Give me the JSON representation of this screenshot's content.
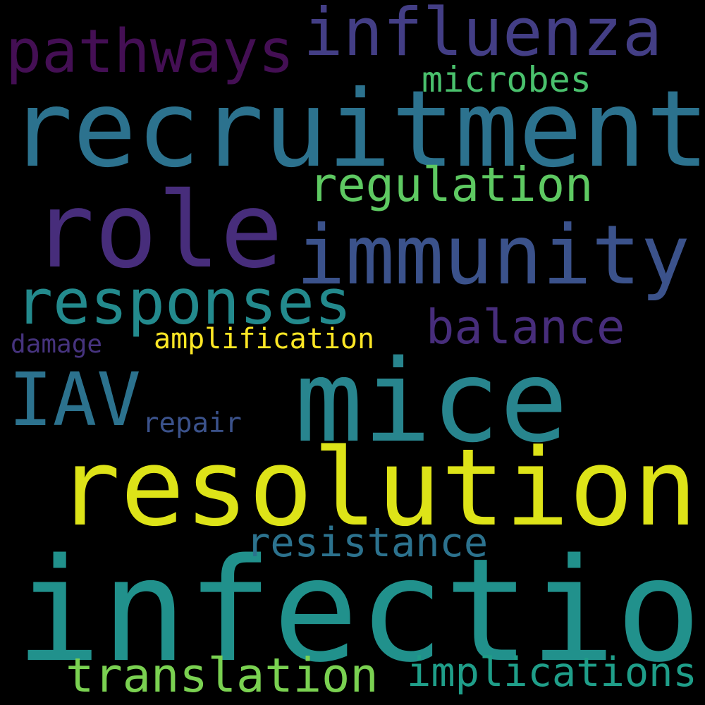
{
  "background": "#000000",
  "words": [
    {
      "id": "infection",
      "text": "infection",
      "color": "#21918c"
    },
    {
      "id": "recruitment",
      "text": "recruitment",
      "color": "#2c728e"
    },
    {
      "id": "mice",
      "text": "mice",
      "color": "#28858e"
    },
    {
      "id": "resolution",
      "text": "resolution",
      "color": "#dde318"
    },
    {
      "id": "role",
      "text": "role",
      "color": "#472d7b"
    },
    {
      "id": "immunity",
      "text": "immunity",
      "color": "#3b528b"
    },
    {
      "id": "influenza",
      "text": "influenza",
      "color": "#433e85"
    },
    {
      "id": "pathways",
      "text": "pathways",
      "color": "#440f54"
    },
    {
      "id": "responses",
      "text": "responses",
      "color": "#238a8d"
    },
    {
      "id": "IAV",
      "text": "IAV",
      "color": "#2c728e"
    },
    {
      "id": "translation",
      "text": "translation",
      "color": "#7ad151"
    },
    {
      "id": "regulation",
      "text": "regulation",
      "color": "#5ec962"
    },
    {
      "id": "balance",
      "text": "balance",
      "color": "#472d7b"
    },
    {
      "id": "implications",
      "text": "implications",
      "color": "#1f9e89"
    },
    {
      "id": "resistance",
      "text": "resistance",
      "color": "#2c728e"
    },
    {
      "id": "microbes",
      "text": "microbes",
      "color": "#4ac16d"
    },
    {
      "id": "amplification",
      "text": "amplification",
      "color": "#fde725"
    },
    {
      "id": "repair",
      "text": "repair",
      "color": "#3b528b"
    },
    {
      "id": "damage",
      "text": "damage",
      "color": "#46337e"
    }
  ]
}
